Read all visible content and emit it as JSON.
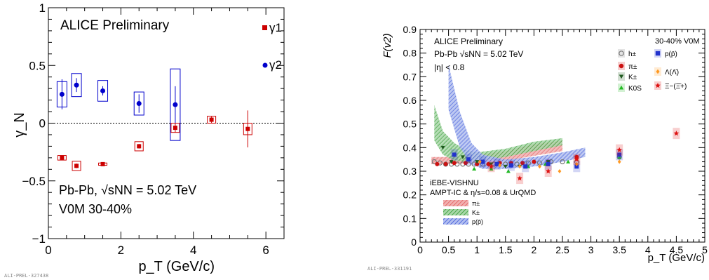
{
  "chart_data": [
    {
      "type": "scatter",
      "title": "ALICE Preliminary",
      "xlabel": "p_T (GeV/c)",
      "ylabel": "γ_N",
      "xlim": [
        0,
        6.5
      ],
      "ylim": [
        -1,
        1
      ],
      "x_ticks": [
        "0",
        "2",
        "4",
        "6"
      ],
      "y_ticks": [
        "−1",
        "−0.5",
        "0",
        "0.5",
        "1"
      ],
      "annotations": [
        "Pb-Pb, √sNN = 5.02 TeV",
        "V0M 30-40%"
      ],
      "watermark": "ALI-PREL-327438",
      "zero_line": true,
      "legend_placement": "top-right",
      "series": [
        {
          "name": "γ1",
          "color": "#cc0000",
          "marker": "square",
          "points": [
            {
              "x": 0.375,
              "y": -0.3,
              "err": 0.02,
              "sys": 0.02
            },
            {
              "x": 0.775,
              "y": -0.37,
              "err": 0.02,
              "sys": 0.04
            },
            {
              "x": 1.5,
              "y": -0.355,
              "err": 0.01,
              "sys": 0.01
            },
            {
              "x": 2.5,
              "y": -0.2,
              "err": 0.02,
              "sys": 0.04
            },
            {
              "x": 3.5,
              "y": -0.04,
              "err": 0.04,
              "sys": 0.04
            },
            {
              "x": 4.5,
              "y": 0.03,
              "err": 0.03,
              "sys": 0.03
            },
            {
              "x": 5.5,
              "y": -0.05,
              "err": 0.16,
              "sys": 0.05
            }
          ]
        },
        {
          "name": "γ2",
          "color": "#0000cc",
          "marker": "circle",
          "points": [
            {
              "x": 0.375,
              "y": 0.25,
              "err": 0.13,
              "sys": 0.11
            },
            {
              "x": 0.775,
              "y": 0.33,
              "err": 0.06,
              "sys": 0.1
            },
            {
              "x": 1.5,
              "y": 0.28,
              "err": 0.04,
              "sys": 0.09
            },
            {
              "x": 2.5,
              "y": 0.17,
              "err": 0.08,
              "sys": 0.1
            },
            {
              "x": 3.5,
              "y": 0.16,
              "err": 0.16,
              "sys": 0.31
            }
          ]
        }
      ]
    },
    {
      "type": "scatter",
      "xlabel": "p_T (GeV/c)",
      "ylabel": "F(v2)",
      "xlim": [
        0,
        5
      ],
      "ylim": [
        0,
        0.9
      ],
      "x_ticks": [
        "0",
        "0.5",
        "1",
        "1.5",
        "2",
        "2.5",
        "3",
        "3.5",
        "4",
        "4.5",
        "5"
      ],
      "y_ticks": [
        "0",
        "0.1",
        "0.2",
        "0.3",
        "0.4",
        "0.5",
        "0.6",
        "0.7",
        "0.8",
        "0.9"
      ],
      "text_lines": [
        "ALICE Preliminary",
        "Pb-Pb √sNN = 5.02 TeV",
        "|η| < 0.8",
        "30-40% V0M"
      ],
      "model_text": [
        "iEBE-VISHNU",
        "AMPT-IC & η/s=0.08 & UrQMD"
      ],
      "model_legend": [
        "π±",
        "K±",
        "p(p̄)"
      ],
      "watermark": "ALI-PREL-331191",
      "legend_placement": "top-right",
      "series": [
        {
          "name": "h±",
          "color": "#777777",
          "marker": "open-circle",
          "points": [
            [
              0.25,
              0.34
            ],
            [
              0.35,
              0.335
            ],
            [
              0.45,
              0.33
            ],
            [
              0.55,
              0.33
            ],
            [
              0.65,
              0.33
            ],
            [
              0.75,
              0.33
            ],
            [
              0.85,
              0.33
            ],
            [
              0.95,
              0.33
            ],
            [
              1.1,
              0.33
            ],
            [
              1.3,
              0.33
            ],
            [
              1.5,
              0.33
            ],
            [
              1.7,
              0.33
            ],
            [
              1.9,
              0.335
            ],
            [
              2.1,
              0.335
            ],
            [
              2.3,
              0.34
            ],
            [
              2.5,
              0.34
            ],
            [
              2.75,
              0.34
            ],
            [
              3.5,
              0.36
            ]
          ]
        },
        {
          "name": "π±",
          "color": "#cc1111",
          "marker": "circle",
          "points": [
            [
              0.3,
              0.33
            ],
            [
              0.45,
              0.33
            ],
            [
              0.6,
              0.335
            ],
            [
              0.8,
              0.335
            ],
            [
              1.0,
              0.33
            ],
            [
              1.2,
              0.33
            ],
            [
              1.4,
              0.335
            ],
            [
              1.6,
              0.335
            ],
            [
              1.8,
              0.335
            ],
            [
              2.0,
              0.34
            ],
            [
              2.25,
              0.34
            ],
            [
              2.75,
              0.36
            ],
            [
              3.5,
              0.37
            ]
          ]
        },
        {
          "name": "K±",
          "color": "#1f5a1f",
          "marker": "down-triangle",
          "points": [
            [
              0.4,
              0.4
            ],
            [
              0.55,
              0.34
            ],
            [
              0.75,
              0.36
            ],
            [
              1.0,
              0.34
            ],
            [
              1.25,
              0.33
            ],
            [
              1.5,
              0.32
            ],
            [
              1.75,
              0.32
            ],
            [
              2.25,
              0.34
            ]
          ]
        },
        {
          "name": "K0S",
          "color": "#22bb22",
          "marker": "triangle",
          "points": [
            [
              0.95,
              0.31
            ],
            [
              1.25,
              0.31
            ],
            [
              1.55,
              0.3
            ],
            [
              1.9,
              0.32
            ],
            [
              2.2,
              0.33
            ],
            [
              2.6,
              0.34
            ],
            [
              3.5,
              0.36
            ]
          ]
        },
        {
          "name": "p(p̄)",
          "color": "#2233cc",
          "marker": "square",
          "points": [
            [
              0.6,
              0.37
            ],
            [
              0.85,
              0.35
            ],
            [
              1.1,
              0.34
            ],
            [
              1.35,
              0.33
            ],
            [
              1.6,
              0.325
            ],
            [
              1.85,
              0.32
            ],
            [
              2.25,
              0.33
            ],
            [
              2.75,
              0.32
            ],
            [
              3.5,
              0.37
            ]
          ]
        },
        {
          "name": "Λ(Λ̄)",
          "color": "#ff9922",
          "marker": "diamond",
          "points": [
            [
              1.05,
              0.34
            ],
            [
              1.4,
              0.325
            ],
            [
              1.75,
              0.32
            ],
            [
              2.1,
              0.32
            ],
            [
              2.45,
              0.3
            ],
            [
              2.75,
              0.33
            ],
            [
              3.5,
              0.34
            ]
          ]
        },
        {
          "name": "Ξ−(Ξ̄+)",
          "color": "#dd1111",
          "marker": "star",
          "points": [
            [
              1.25,
              0.32
            ],
            [
              1.75,
              0.27
            ],
            [
              2.25,
              0.3
            ],
            [
              2.75,
              0.35
            ],
            [
              3.5,
              0.39
            ],
            [
              4.5,
              0.46
            ]
          ]
        }
      ],
      "bands": [
        {
          "name": "π±",
          "color": "#e25b5b",
          "lower": [
            [
              0.2,
              0.33
            ],
            [
              0.5,
              0.33
            ],
            [
              1.0,
              0.335
            ],
            [
              1.5,
              0.345
            ],
            [
              2.0,
              0.365
            ],
            [
              2.5,
              0.385
            ]
          ],
          "upper": [
            [
              0.2,
              0.36
            ],
            [
              0.5,
              0.36
            ],
            [
              1.0,
              0.37
            ],
            [
              1.5,
              0.385
            ],
            [
              2.0,
              0.415
            ],
            [
              2.5,
              0.43
            ]
          ]
        },
        {
          "name": "K±",
          "color": "#2e9a2e",
          "lower": [
            [
              0.25,
              0.43
            ],
            [
              0.4,
              0.37
            ],
            [
              0.6,
              0.345
            ],
            [
              0.8,
              0.34
            ],
            [
              1.0,
              0.345
            ],
            [
              1.5,
              0.36
            ],
            [
              2.0,
              0.385
            ],
            [
              2.5,
              0.41
            ]
          ],
          "upper": [
            [
              0.25,
              0.58
            ],
            [
              0.4,
              0.47
            ],
            [
              0.6,
              0.42
            ],
            [
              0.8,
              0.39
            ],
            [
              1.0,
              0.38
            ],
            [
              1.5,
              0.395
            ],
            [
              2.0,
              0.425
            ],
            [
              2.5,
              0.44
            ]
          ]
        },
        {
          "name": "p(p̄)",
          "color": "#3b57d9",
          "lower": [
            [
              0.5,
              0.56
            ],
            [
              0.7,
              0.4
            ],
            [
              0.9,
              0.33
            ],
            [
              1.1,
              0.31
            ],
            [
              1.5,
              0.31
            ],
            [
              2.0,
              0.32
            ],
            [
              2.5,
              0.34
            ],
            [
              2.9,
              0.36
            ]
          ],
          "upper": [
            [
              0.5,
              0.75
            ],
            [
              0.7,
              0.55
            ],
            [
              0.9,
              0.42
            ],
            [
              1.1,
              0.37
            ],
            [
              1.5,
              0.35
            ],
            [
              2.0,
              0.36
            ],
            [
              2.5,
              0.38
            ],
            [
              2.9,
              0.4
            ]
          ]
        }
      ]
    }
  ]
}
